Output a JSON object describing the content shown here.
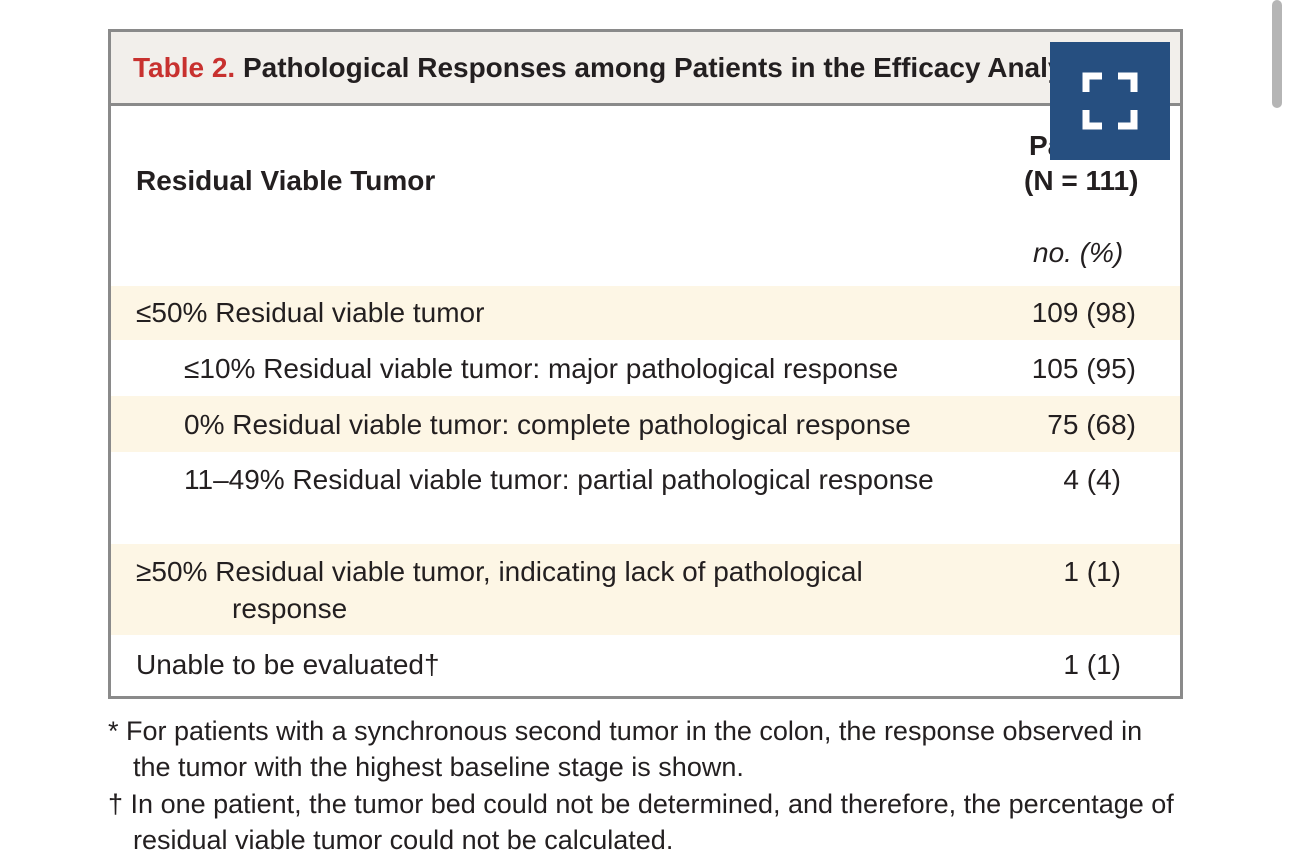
{
  "header": {
    "label": "Table 2.",
    "title": "Pathological Responses among Patients in the Efficacy Analy"
  },
  "table": {
    "column_headers": [
      "Residual Viable Tumor",
      "Pa",
      "(N = 111)",
      "no. (%)"
    ],
    "rows": [
      [
        "≤50% Residual viable tumor",
        "109 (98)"
      ],
      [
        "≤10% Residual viable tumor: major pathological response",
        "105 (95)"
      ],
      [
        "0% Residual viable tumor: complete pathological response",
        "75 (68)"
      ],
      [
        "11–49% Residual viable tumor: partial pathological response",
        "4 (4)"
      ],
      [
        "≥50% Residual viable tumor, indicating lack of pathological response",
        "1 (1)"
      ],
      [
        "Unable to be evaluated†",
        "1 (1)"
      ]
    ]
  },
  "footnotes": [
    [
      "*",
      "For patients with a synchronous second tumor in the colon, the response observed in the tumor with the highest baseline stage is shown."
    ],
    [
      "†",
      "In one patient, the tumor bed could not be determined, and therefore, the percentage of residual viable tumor could not be calculated."
    ]
  ]
}
